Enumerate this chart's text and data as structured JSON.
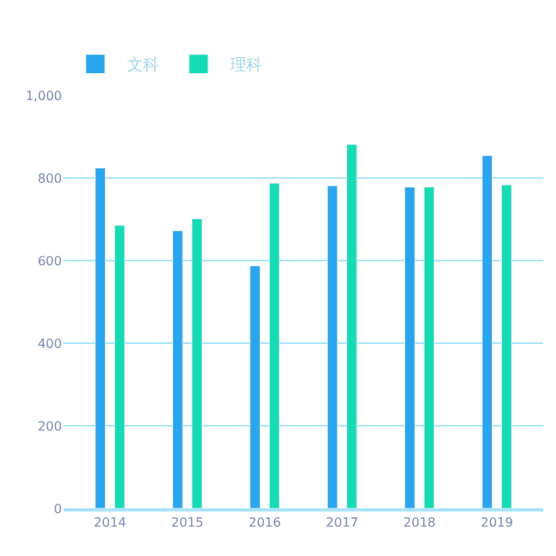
{
  "chart_data": {
    "type": "bar",
    "categories": [
      "2014",
      "2015",
      "2016",
      "2017",
      "2018",
      "2019"
    ],
    "series": [
      {
        "name": "文科",
        "color": "#2aa5f0",
        "values": [
          824,
          672,
          587,
          781,
          778,
          854
        ]
      },
      {
        "name": "理科",
        "color": "#14dcb4",
        "values": [
          685,
          701,
          787,
          881,
          778,
          783
        ]
      }
    ],
    "ylim": [
      0,
      1000
    ],
    "yticks": [
      0,
      200,
      400,
      600,
      800,
      {
        "value": 1000,
        "label": "1,000"
      }
    ],
    "grid": "y",
    "legend": "top left"
  }
}
